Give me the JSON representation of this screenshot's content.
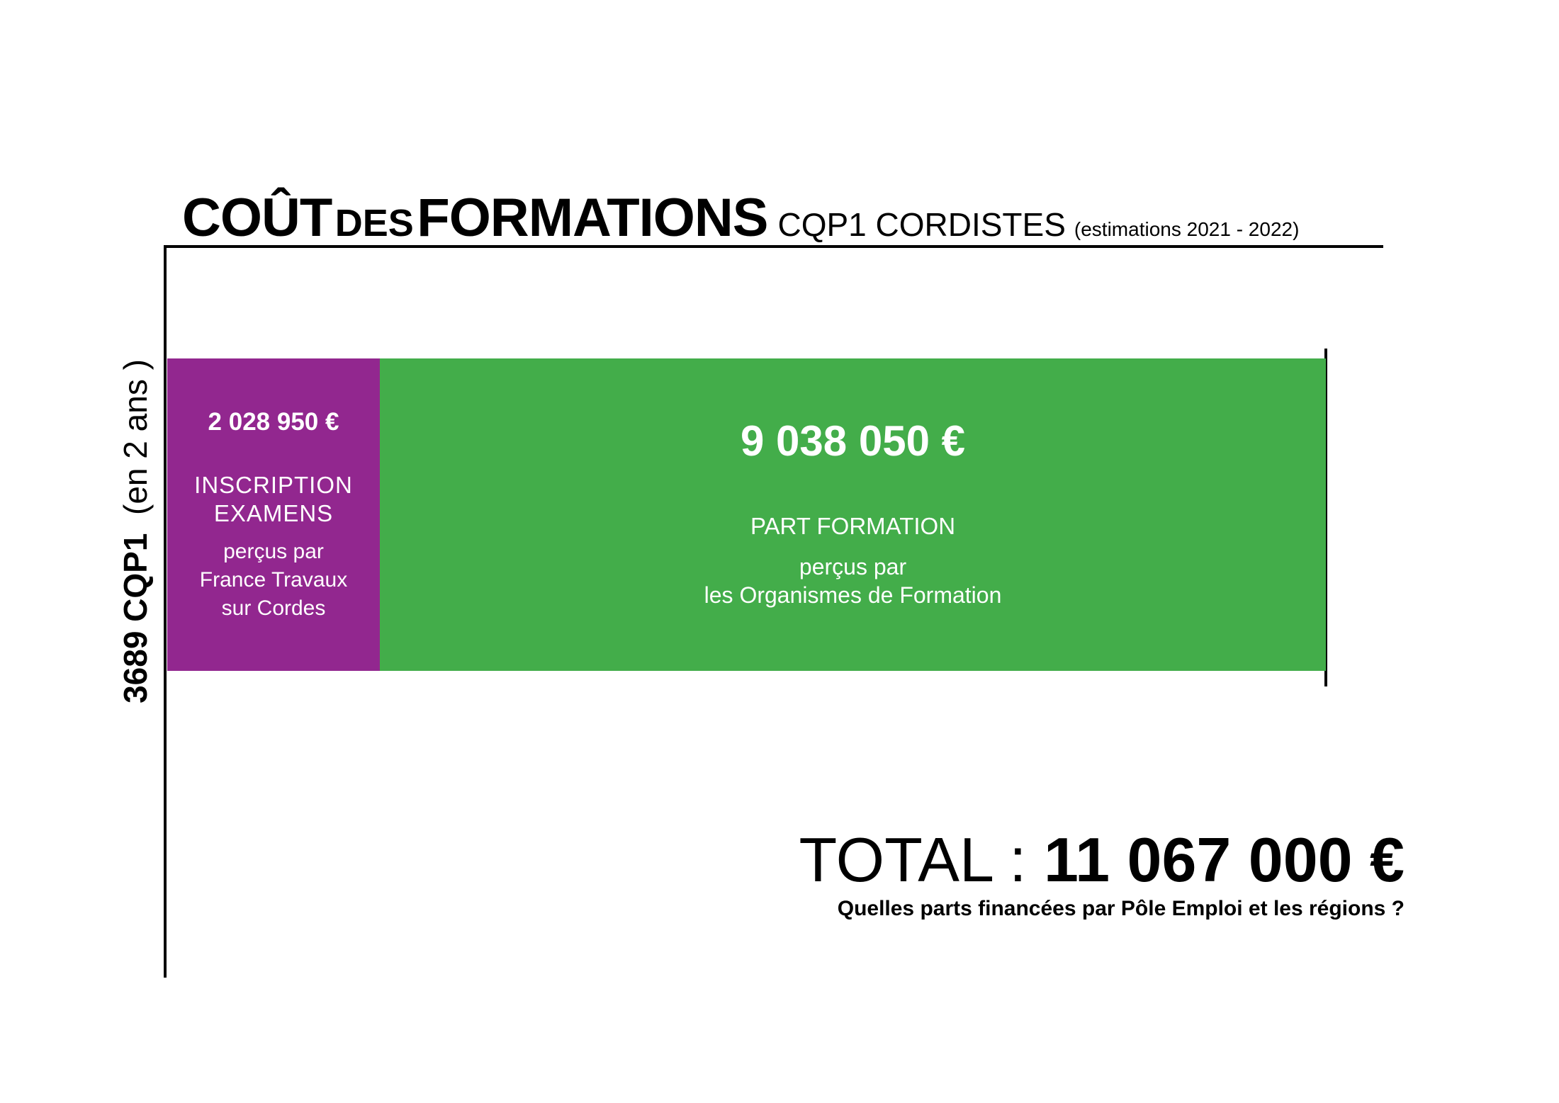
{
  "title": {
    "main_1": "COÛT",
    "main_2": "DES",
    "main_3": "FORMATIONS",
    "sub": "CQP1 CORDISTES",
    "note": "(estimations 2021 - 2022)"
  },
  "y_label": {
    "bold": "3689 CQP1",
    "normal": "(en 2 ans )"
  },
  "total": {
    "label": "TOTAL :",
    "value": "11 067 000 €"
  },
  "question": "Quelles parts financées par Pôle Emploi et les régions ?",
  "chart_data": {
    "type": "bar",
    "orientation": "horizontal-stacked",
    "title": "COÛT DES FORMATIONS CQP1 CORDISTES (estimations 2021 - 2022)",
    "ylabel": "3689 CQP1 (en 2 ans )",
    "total": 11067000,
    "segments": [
      {
        "value": 2028950,
        "value_label": "2 028 950 €",
        "name_lines": [
          "INSCRIPTION",
          "EXAMENS"
        ],
        "detail_lines": [
          "perçus par",
          "France Travaux",
          "sur Cordes"
        ],
        "color": "#92278f"
      },
      {
        "value": 9038050,
        "value_label": "9 038 050 €",
        "name_lines": [
          "PART FORMATION"
        ],
        "detail_lines": [
          "perçus par",
          "les Organismes de Formation"
        ],
        "color": "#43ad4a"
      }
    ]
  }
}
